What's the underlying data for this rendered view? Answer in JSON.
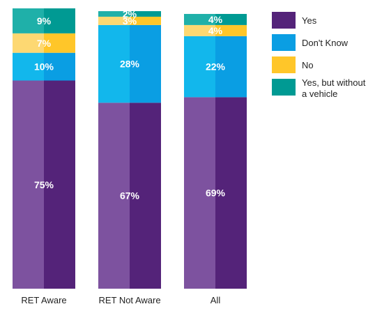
{
  "chart_data": {
    "type": "bar",
    "stacked": true,
    "percent": true,
    "categories": [
      "RET Aware",
      "RET Not Aware",
      "All"
    ],
    "series": [
      {
        "name": "Yes",
        "values": [
          75,
          67,
          69
        ],
        "labels": [
          "75%",
          "67%",
          "69%"
        ],
        "color": "#542379",
        "color_light": "#7D529F"
      },
      {
        "name": "Don't Know",
        "values": [
          10,
          28,
          22
        ],
        "labels": [
          "10%",
          "28%",
          "22%"
        ],
        "color": "#0A9EE3",
        "color_light": "#12B7EC"
      },
      {
        "name": "No",
        "values": [
          7,
          3,
          4
        ],
        "labels": [
          "7%",
          "3%",
          "4%"
        ],
        "color": "#FFC629",
        "color_light": "#FDD872"
      },
      {
        "name": "Yes, but without a vehicle",
        "values": [
          9,
          2,
          4
        ],
        "labels": [
          "9%",
          "2%",
          "4%"
        ],
        "color": "#009A93",
        "color_light": "#1FB0A9"
      }
    ],
    "legend": {
      "position": "right",
      "entries": [
        "Yes",
        "Don't Know",
        "No",
        "Yes, but without a vehicle"
      ]
    },
    "ylim": [
      0,
      100
    ],
    "grid": false
  }
}
